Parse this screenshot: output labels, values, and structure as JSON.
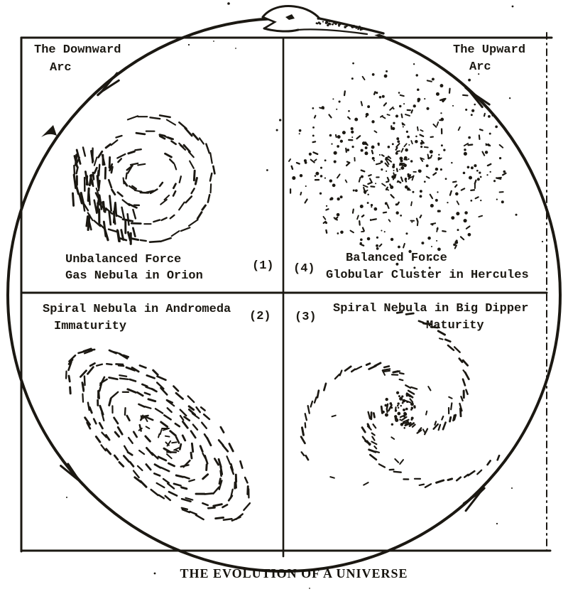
{
  "diagram": {
    "title": "THE EVOLUTION OF A UNIVERSE",
    "arcs": {
      "downward": {
        "line1": "The Downward",
        "line2": "Arc"
      },
      "upward": {
        "line1": "The Upward",
        "line2": "Arc"
      }
    },
    "quadrants": {
      "q1": {
        "number": "(1)",
        "line1": "Unbalanced Force",
        "line2": "Gas Nebula in Orion"
      },
      "q2": {
        "number": "(2)",
        "line1": "Spiral Nebula in Andromeda",
        "line2": "Immaturity"
      },
      "q3": {
        "number": "(3)",
        "line1": "Spiral Nebula in Big Dipper",
        "line2": "Maturity"
      },
      "q4": {
        "number": "(4)",
        "line1": "Balanced Force",
        "line2": "Globular Cluster in Hercules"
      }
    },
    "colors": {
      "ink": "#1b1812",
      "paper": "#ffffff"
    }
  }
}
